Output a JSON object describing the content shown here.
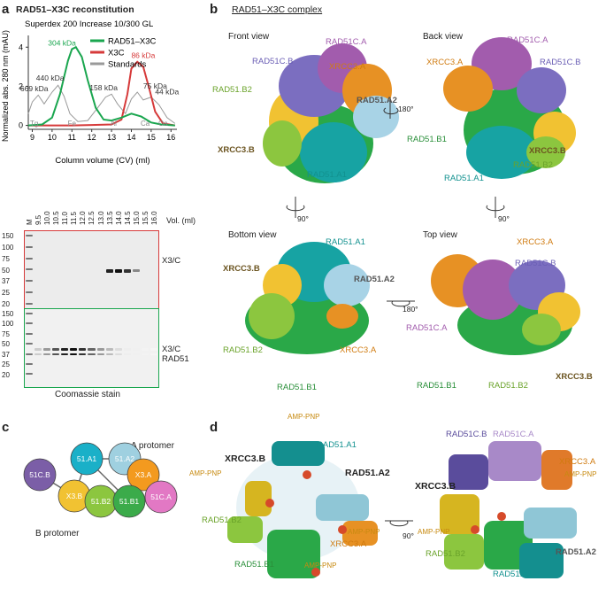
{
  "panel_a": {
    "letter": "a",
    "header": "RAD51–X3C reconstitution",
    "chart_data": {
      "type": "line",
      "title": "Superdex 200 Increase 10/300 GL",
      "xlabel": "Column volume (CV) (ml)",
      "ylabel": "Normalized abs. 280 nm (mAU)",
      "xlim": [
        8.8,
        16.3
      ],
      "ylim": [
        -0.2,
        4.6
      ],
      "xticks": [
        "9",
        "10",
        "11",
        "12",
        "13",
        "14",
        "15",
        "16"
      ],
      "yticks": [
        "0",
        "2",
        "4"
      ],
      "series": [
        {
          "name": "RAD51–X3C",
          "color": "#1aa64f",
          "x": [
            8.8,
            9.5,
            10.0,
            10.4,
            10.8,
            11.0,
            11.2,
            11.5,
            11.8,
            12.2,
            12.6,
            13.0,
            13.5,
            14.0,
            14.5,
            15.0,
            15.5,
            16.2
          ],
          "y": [
            0,
            0.05,
            0.4,
            1.6,
            3.3,
            3.9,
            4.0,
            3.5,
            2.3,
            0.9,
            0.3,
            0.25,
            0.4,
            0.6,
            0.45,
            0.15,
            0.05,
            0
          ]
        },
        {
          "name": "X3C",
          "color": "#d63a3a",
          "x": [
            8.8,
            10,
            11,
            12,
            13,
            13.5,
            13.8,
            14.0,
            14.3,
            14.6,
            14.9,
            15.2,
            15.6,
            16.2
          ],
          "y": [
            0,
            0,
            0,
            0.02,
            0.05,
            0.3,
            1.6,
            2.9,
            3.25,
            3.0,
            1.9,
            0.7,
            0.1,
            0
          ]
        },
        {
          "name": "Standards",
          "color": "#9a9a9a",
          "x": [
            8.8,
            9.0,
            9.3,
            9.6,
            10.0,
            10.3,
            10.6,
            10.9,
            11.3,
            11.8,
            12.3,
            12.7,
            13.0,
            13.3,
            13.7,
            14.0,
            14.3,
            14.6,
            15.0,
            15.4,
            15.8,
            16.2
          ],
          "y": [
            0.6,
            1.2,
            1.55,
            1.1,
            1.7,
            2.05,
            1.5,
            0.6,
            0.2,
            0.25,
            0.9,
            1.45,
            1.6,
            1.1,
            0.6,
            1.35,
            1.7,
            1.3,
            1.45,
            1.05,
            0.4,
            0.1
          ]
        }
      ],
      "annotations": [
        {
          "text": "304 kDa",
          "color": "#1aa64f"
        },
        {
          "text": "86 kDa",
          "color": "#d63a3a"
        },
        {
          "text": "440 kDa",
          "color": "#333"
        },
        {
          "text": "669 kDa",
          "color": "#333"
        },
        {
          "text": "158 kDa",
          "color": "#333"
        },
        {
          "text": "75 kDa",
          "color": "#333"
        },
        {
          "text": "44 kDa",
          "color": "#333"
        }
      ],
      "standards_labels": [
        "Tg",
        "Fe",
        "Al",
        "Ca",
        "Oa"
      ]
    }
  },
  "gels": {
    "lanes": [
      "M",
      "9.5",
      "10.0",
      "10.5",
      "11.0",
      "11.5",
      "12.0",
      "12.5",
      "13.0",
      "13.5",
      "14.0",
      "14.5",
      "15.0",
      "15.5",
      "16.0"
    ],
    "vol_label": "Vol. (ml)",
    "markers": [
      "150",
      "100",
      "75",
      "50",
      "37",
      "25",
      "20"
    ],
    "top_label": "X3/C",
    "bottom_label_1": "X3/C",
    "bottom_label_2": "RAD51",
    "caption": "Coomassie stain",
    "top_border": "#d63a3a",
    "bottom_border": "#1aa64f"
  },
  "panel_b": {
    "letter": "b",
    "header": "RAD51–X3C complex",
    "views": [
      {
        "title": "Front view",
        "labels": [
          "RAD51C.A",
          "RAD51C.B",
          "XRCC3.A",
          "RAD51.B2",
          "RAD51.A2",
          "XRCC3.B",
          "RAD51.A1"
        ]
      },
      {
        "title": "Back view",
        "labels": [
          "RAD51C.A",
          "XRCC3.A",
          "RAD51C.B",
          "RAD51.B1",
          "XRCC3.B",
          "RAD51.B2",
          "RAD51.A1"
        ]
      },
      {
        "title": "Bottom view",
        "labels": [
          "RAD51.A1",
          "XRCC3.B",
          "RAD51.A2",
          "RAD51.B2",
          "XRCC3.A",
          "RAD51.B1"
        ]
      },
      {
        "title": "Top view",
        "labels": [
          "XRCC3.A",
          "RAD51C.B",
          "RAD51C.A",
          "XRCC3.B",
          "RAD51.B1",
          "RAD51.B2"
        ]
      }
    ],
    "rotations": [
      "180°",
      "90°",
      "90°",
      "180°"
    ]
  },
  "panel_c": {
    "letter": "c",
    "a_protomer": "A protomer",
    "b_protomer": "B protomer",
    "nodes": [
      {
        "text": "51C.B",
        "color": "#7b5ea7"
      },
      {
        "text": "X3.B",
        "color": "#f1c232"
      },
      {
        "text": "51.A1",
        "color": "#1ab0c8"
      },
      {
        "text": "51.A2",
        "color": "#9fd0e0"
      },
      {
        "text": "X3.A",
        "color": "#f39a1f"
      },
      {
        "text": "51C.A",
        "color": "#e278c4"
      },
      {
        "text": "51.B2",
        "color": "#8cc63f"
      },
      {
        "text": "51.B1",
        "color": "#3bab4a"
      }
    ]
  },
  "panel_d": {
    "letter": "d",
    "left_labels": [
      "AMP-PNP",
      "RAD51.A1",
      "XRCC3.B",
      "RAD51.A2",
      "AMP-PNP",
      "RAD51.B2",
      "AMP-PNP",
      "XRCC3.A",
      "RAD51.B1",
      "AMP-PNP"
    ],
    "right_labels": [
      "RAD51C.B",
      "RAD51C.A",
      "XRCC3.A",
      "XRCC3.B",
      "AMP-PNP",
      "AMP-PNP",
      "RAD51.B2",
      "RAD51.A2",
      "RAD51.A1"
    ],
    "rotation": "90°"
  }
}
